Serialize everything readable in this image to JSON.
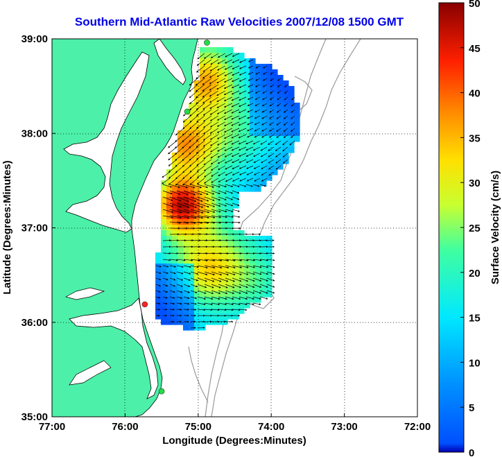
{
  "title": "Southern Mid-Atlantic Raw Velocities 2007/12/08 1500 GMT",
  "xaxis": {
    "label": "Longitude (Degrees:Minutes)",
    "ticks": [
      "77:00",
      "76:00",
      "75:00",
      "74:00",
      "73:00",
      "72:00"
    ],
    "range": [
      -77,
      -72
    ]
  },
  "yaxis": {
    "label": "Latitude (Degrees:Minutes)",
    "ticks": [
      "39:00",
      "38:00",
      "37:00",
      "36:00",
      "35:00"
    ],
    "range": [
      35,
      39
    ]
  },
  "colorbar": {
    "label": "Surface Velocity (cm/s)",
    "ticks": [
      "50",
      "45",
      "40",
      "35",
      "30",
      "25",
      "20",
      "15",
      "10",
      "5",
      "0"
    ],
    "range": [
      0,
      50
    ],
    "colormap": "jet"
  },
  "colors": {
    "land": "#4cf0a8",
    "coastline": "#000000",
    "bathymetry": "#999999",
    "arrows": "#000000",
    "station_green": "#22dd44",
    "station_red": "#ff2222"
  },
  "grid": "dotted",
  "stations": [
    {
      "lon": -74.88,
      "lat": 38.96,
      "status": "green"
    },
    {
      "lon": -75.15,
      "lat": 38.23,
      "status": "green"
    },
    {
      "lon": -75.73,
      "lat": 36.19,
      "status": "red"
    },
    {
      "lon": -75.5,
      "lat": 35.27,
      "status": "green"
    }
  ]
}
